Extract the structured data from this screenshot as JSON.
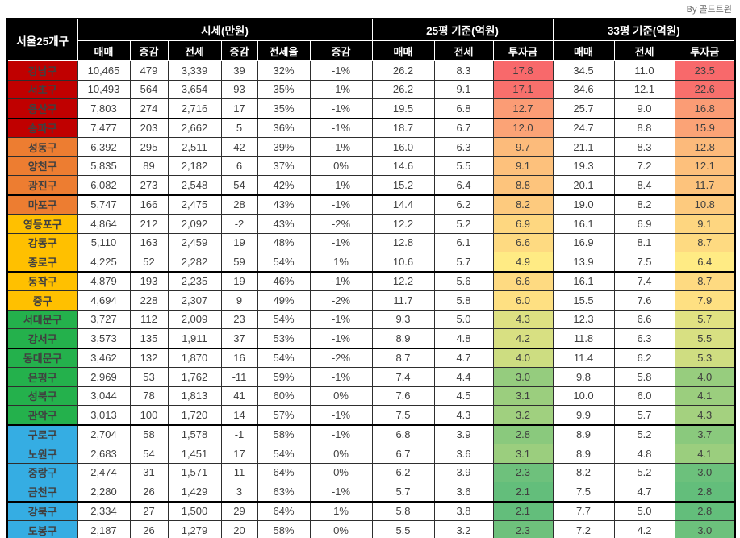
{
  "credit": "By 골드트윈",
  "colors": {
    "header_bg": "#000000",
    "header_text": "#FFFFFF",
    "body_text": "#404040",
    "positive_change": "#F8423C",
    "negative_change": "#3355E0",
    "tiers": {
      "red": "#C00000",
      "orange": "#ED7D31",
      "yellow": "#FFC000",
      "green": "#24B14C",
      "blue": "#35ADE3"
    },
    "invest_scale": {
      "min": "#63BE7B",
      "mid": "#FFEB84",
      "max": "#F8696B"
    }
  },
  "header": {
    "corner": "서울25개구",
    "groups": [
      {
        "label": "시세(만원)",
        "cols": [
          "매매",
          "증감",
          "전세",
          "증감",
          "전세율",
          "증감"
        ]
      },
      {
        "label": "25평 기준(억원)",
        "cols": [
          "매매",
          "전세",
          "투자금"
        ]
      },
      {
        "label": "33평 기준(억원)",
        "cols": [
          "매매",
          "전세",
          "투자금"
        ]
      }
    ]
  },
  "chart_data": {
    "type": "table",
    "column_groups": [
      "시세(만원)",
      "25평 기준(억원)",
      "33평 기준(억원)"
    ],
    "columns": [
      "서울25개구",
      "매매",
      "증감",
      "전세",
      "증감",
      "전세율",
      "증감",
      "25평 매매",
      "25평 전세",
      "25평 투자금",
      "33평 매매",
      "33평 전세",
      "33평 투자금"
    ],
    "rows": [
      {
        "district": "강남구",
        "tier": "red",
        "sale": 10465,
        "sale_chg": 479,
        "jeonse": 3339,
        "jeonse_chg": 39,
        "ratio": "32%",
        "ratio_chg": "-1%",
        "ratio_chg_color": "default",
        "p25_sale": 26.2,
        "p25_jeonse": 8.3,
        "p25_invest": 17.8,
        "p33_sale": 34.5,
        "p33_jeonse": 11.0,
        "p33_invest": 23.5
      },
      {
        "district": "서초구",
        "tier": "red",
        "sale": 10493,
        "sale_chg": 564,
        "jeonse": 3654,
        "jeonse_chg": 93,
        "ratio": "35%",
        "ratio_chg": "-1%",
        "ratio_chg_color": "default",
        "p25_sale": 26.2,
        "p25_jeonse": 9.1,
        "p25_invest": 17.1,
        "p33_sale": 34.6,
        "p33_jeonse": 12.1,
        "p33_invest": 22.6
      },
      {
        "district": "용산구",
        "tier": "red",
        "sale": 7803,
        "sale_chg": 274,
        "jeonse": 2716,
        "jeonse_chg": 17,
        "ratio": "35%",
        "ratio_chg": "-1%",
        "ratio_chg_color": "blue",
        "p25_sale": 19.5,
        "p25_jeonse": 6.8,
        "p25_invest": 12.7,
        "p33_sale": 25.7,
        "p33_jeonse": 9.0,
        "p33_invest": 16.8
      },
      {
        "district": "송파구",
        "tier": "red",
        "sale": 7477,
        "sale_chg": 203,
        "jeonse": 2662,
        "jeonse_chg": 5,
        "ratio": "36%",
        "ratio_chg": "-1%",
        "ratio_chg_color": "default",
        "p25_sale": 18.7,
        "p25_jeonse": 6.7,
        "p25_invest": 12.0,
        "p33_sale": 24.7,
        "p33_jeonse": 8.8,
        "p33_invest": 15.9
      },
      {
        "district": "성동구",
        "tier": "orange",
        "sale": 6392,
        "sale_chg": 295,
        "jeonse": 2511,
        "jeonse_chg": 42,
        "ratio": "39%",
        "ratio_chg": "-1%",
        "ratio_chg_color": "default",
        "p25_sale": 16.0,
        "p25_jeonse": 6.3,
        "p25_invest": 9.7,
        "p33_sale": 21.1,
        "p33_jeonse": 8.3,
        "p33_invest": 12.8
      },
      {
        "district": "양천구",
        "tier": "orange",
        "sale": 5835,
        "sale_chg": 89,
        "jeonse": 2182,
        "jeonse_chg": 6,
        "ratio": "37%",
        "ratio_chg": "0%",
        "ratio_chg_color": "default",
        "p25_sale": 14.6,
        "p25_jeonse": 5.5,
        "p25_invest": 9.1,
        "p33_sale": 19.3,
        "p33_jeonse": 7.2,
        "p33_invest": 12.1
      },
      {
        "district": "광진구",
        "tier": "orange",
        "sale": 6082,
        "sale_chg": 273,
        "jeonse": 2548,
        "jeonse_chg": 54,
        "ratio": "42%",
        "ratio_chg": "-1%",
        "ratio_chg_color": "blue",
        "p25_sale": 15.2,
        "p25_jeonse": 6.4,
        "p25_invest": 8.8,
        "p33_sale": 20.1,
        "p33_jeonse": 8.4,
        "p33_invest": 11.7
      },
      {
        "district": "마포구",
        "tier": "orange",
        "sale": 5747,
        "sale_chg": 166,
        "jeonse": 2475,
        "jeonse_chg": 28,
        "ratio": "43%",
        "ratio_chg": "-1%",
        "ratio_chg_color": "default",
        "p25_sale": 14.4,
        "p25_jeonse": 6.2,
        "p25_invest": 8.2,
        "p33_sale": 19.0,
        "p33_jeonse": 8.2,
        "p33_invest": 10.8
      },
      {
        "district": "영등포구",
        "tier": "yellow",
        "sale": 4864,
        "sale_chg": 212,
        "jeonse": 2092,
        "jeonse_chg": -2,
        "ratio": "43%",
        "ratio_chg": "-2%",
        "ratio_chg_color": "default",
        "p25_sale": 12.2,
        "p25_jeonse": 5.2,
        "p25_invest": 6.9,
        "p33_sale": 16.1,
        "p33_jeonse": 6.9,
        "p33_invest": 9.1
      },
      {
        "district": "강동구",
        "tier": "yellow",
        "sale": 5110,
        "sale_chg": 163,
        "jeonse": 2459,
        "jeonse_chg": 19,
        "ratio": "48%",
        "ratio_chg": "-1%",
        "ratio_chg_color": "default",
        "p25_sale": 12.8,
        "p25_jeonse": 6.1,
        "p25_invest": 6.6,
        "p33_sale": 16.9,
        "p33_jeonse": 8.1,
        "p33_invest": 8.7
      },
      {
        "district": "종로구",
        "tier": "yellow",
        "sale": 4225,
        "sale_chg": 52,
        "jeonse": 2282,
        "jeonse_chg": 59,
        "ratio": "54%",
        "ratio_chg": "1%",
        "ratio_chg_color": "default",
        "p25_sale": 10.6,
        "p25_jeonse": 5.7,
        "p25_invest": 4.9,
        "p33_sale": 13.9,
        "p33_jeonse": 7.5,
        "p33_invest": 6.4
      },
      {
        "district": "동작구",
        "tier": "yellow",
        "sale": 4879,
        "sale_chg": 193,
        "jeonse": 2235,
        "jeonse_chg": 19,
        "ratio": "46%",
        "ratio_chg": "-1%",
        "ratio_chg_color": "blue",
        "p25_sale": 12.2,
        "p25_jeonse": 5.6,
        "p25_invest": 6.6,
        "p33_sale": 16.1,
        "p33_jeonse": 7.4,
        "p33_invest": 8.7
      },
      {
        "district": "중구",
        "tier": "yellow",
        "sale": 4694,
        "sale_chg": 228,
        "jeonse": 2307,
        "jeonse_chg": 9,
        "ratio": "49%",
        "ratio_chg": "-2%",
        "ratio_chg_color": "default",
        "p25_sale": 11.7,
        "p25_jeonse": 5.8,
        "p25_invest": 6.0,
        "p33_sale": 15.5,
        "p33_jeonse": 7.6,
        "p33_invest": 7.9
      },
      {
        "district": "서대문구",
        "tier": "green",
        "sale": 3727,
        "sale_chg": 112,
        "jeonse": 2009,
        "jeonse_chg": 23,
        "ratio": "54%",
        "ratio_chg": "-1%",
        "ratio_chg_color": "default",
        "p25_sale": 9.3,
        "p25_jeonse": 5.0,
        "p25_invest": 4.3,
        "p33_sale": 12.3,
        "p33_jeonse": 6.6,
        "p33_invest": 5.7
      },
      {
        "district": "강서구",
        "tier": "green",
        "sale": 3573,
        "sale_chg": 135,
        "jeonse": 1911,
        "jeonse_chg": 37,
        "ratio": "53%",
        "ratio_chg": "-1%",
        "ratio_chg_color": "default",
        "p25_sale": 8.9,
        "p25_jeonse": 4.8,
        "p25_invest": 4.2,
        "p33_sale": 11.8,
        "p33_jeonse": 6.3,
        "p33_invest": 5.5
      },
      {
        "district": "동대문구",
        "tier": "green",
        "sale": 3462,
        "sale_chg": 132,
        "jeonse": 1870,
        "jeonse_chg": 16,
        "ratio": "54%",
        "ratio_chg": "-2%",
        "ratio_chg_color": "default",
        "p25_sale": 8.7,
        "p25_jeonse": 4.7,
        "p25_invest": 4.0,
        "p33_sale": 11.4,
        "p33_jeonse": 6.2,
        "p33_invest": 5.3
      },
      {
        "district": "은평구",
        "tier": "green",
        "sale": 2969,
        "sale_chg": 53,
        "jeonse": 1762,
        "jeonse_chg": -11,
        "ratio": "59%",
        "ratio_chg": "-1%",
        "ratio_chg_color": "default",
        "p25_sale": 7.4,
        "p25_jeonse": 4.4,
        "p25_invest": 3.0,
        "p33_sale": 9.8,
        "p33_jeonse": 5.8,
        "p33_invest": 4.0
      },
      {
        "district": "성북구",
        "tier": "green",
        "sale": 3044,
        "sale_chg": 78,
        "jeonse": 1813,
        "jeonse_chg": 41,
        "ratio": "60%",
        "ratio_chg": "0%",
        "ratio_chg_color": "default",
        "p25_sale": 7.6,
        "p25_jeonse": 4.5,
        "p25_invest": 3.1,
        "p33_sale": 10.0,
        "p33_jeonse": 6.0,
        "p33_invest": 4.1
      },
      {
        "district": "관악구",
        "tier": "green",
        "sale": 3013,
        "sale_chg": 100,
        "jeonse": 1720,
        "jeonse_chg": 14,
        "ratio": "57%",
        "ratio_chg": "-1%",
        "ratio_chg_color": "default",
        "p25_sale": 7.5,
        "p25_jeonse": 4.3,
        "p25_invest": 3.2,
        "p33_sale": 9.9,
        "p33_jeonse": 5.7,
        "p33_invest": 4.3
      },
      {
        "district": "구로구",
        "tier": "blue",
        "sale": 2704,
        "sale_chg": 58,
        "jeonse": 1578,
        "jeonse_chg": -1,
        "ratio": "58%",
        "ratio_chg": "-1%",
        "ratio_chg_color": "default",
        "p25_sale": 6.8,
        "p25_jeonse": 3.9,
        "p25_invest": 2.8,
        "p33_sale": 8.9,
        "p33_jeonse": 5.2,
        "p33_invest": 3.7
      },
      {
        "district": "노원구",
        "tier": "blue",
        "sale": 2683,
        "sale_chg": 54,
        "jeonse": 1451,
        "jeonse_chg": 17,
        "ratio": "54%",
        "ratio_chg": "0%",
        "ratio_chg_color": "default",
        "p25_sale": 6.7,
        "p25_jeonse": 3.6,
        "p25_invest": 3.1,
        "p33_sale": 8.9,
        "p33_jeonse": 4.8,
        "p33_invest": 4.1
      },
      {
        "district": "중랑구",
        "tier": "blue",
        "sale": 2474,
        "sale_chg": 31,
        "jeonse": 1571,
        "jeonse_chg": 11,
        "ratio": "64%",
        "ratio_chg": "0%",
        "ratio_chg_color": "red",
        "p25_sale": 6.2,
        "p25_jeonse": 3.9,
        "p25_invest": 2.3,
        "p33_sale": 8.2,
        "p33_jeonse": 5.2,
        "p33_invest": 3.0
      },
      {
        "district": "금천구",
        "tier": "blue",
        "sale": 2280,
        "sale_chg": 26,
        "jeonse": 1429,
        "jeonse_chg": 3,
        "ratio": "63%",
        "ratio_chg": "-1%",
        "ratio_chg_color": "default",
        "p25_sale": 5.7,
        "p25_jeonse": 3.6,
        "p25_invest": 2.1,
        "p33_sale": 7.5,
        "p33_jeonse": 4.7,
        "p33_invest": 2.8
      },
      {
        "district": "강북구",
        "tier": "blue",
        "sale": 2334,
        "sale_chg": 27,
        "jeonse": 1500,
        "jeonse_chg": 29,
        "ratio": "64%",
        "ratio_chg": "1%",
        "ratio_chg_color": "default",
        "p25_sale": 5.8,
        "p25_jeonse": 3.8,
        "p25_invest": 2.1,
        "p33_sale": 7.7,
        "p33_jeonse": 5.0,
        "p33_invest": 2.8
      },
      {
        "district": "도봉구",
        "tier": "blue",
        "sale": 2187,
        "sale_chg": 26,
        "jeonse": 1279,
        "jeonse_chg": 20,
        "ratio": "58%",
        "ratio_chg": "0%",
        "ratio_chg_color": "default",
        "p25_sale": 5.5,
        "p25_jeonse": 3.2,
        "p25_invest": 2.3,
        "p33_sale": 7.2,
        "p33_jeonse": 4.2,
        "p33_invest": 3.0
      }
    ]
  }
}
